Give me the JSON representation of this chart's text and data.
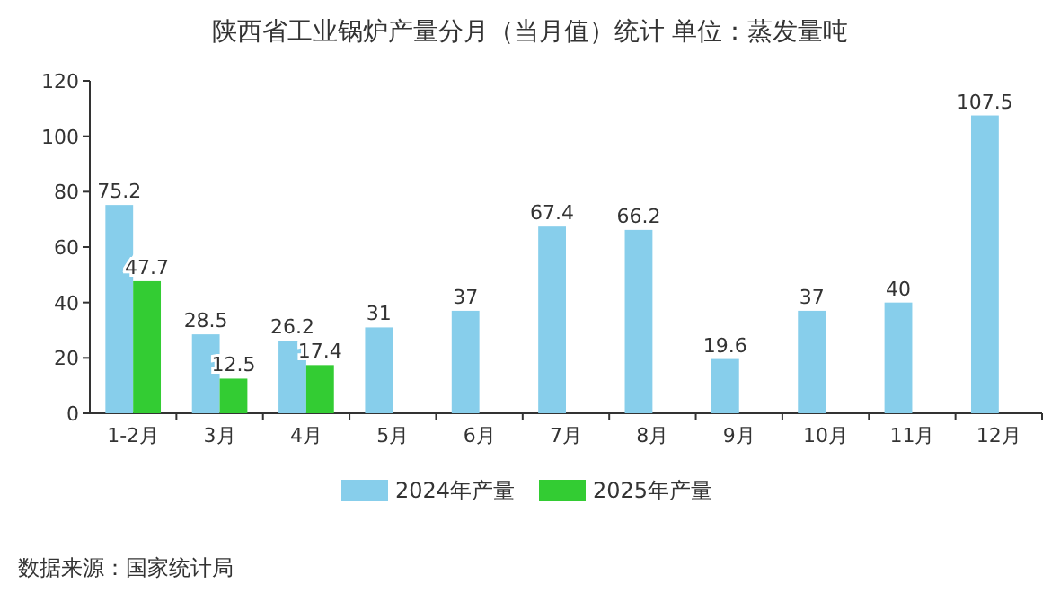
{
  "chart_data": {
    "type": "bar",
    "title": "陕西省工业锅炉产量分月（当月值）统计 单位：蒸发量吨",
    "categories": [
      "1-2月",
      "3月",
      "4月",
      "5月",
      "6月",
      "7月",
      "8月",
      "9月",
      "10月",
      "11月",
      "12月"
    ],
    "series": [
      {
        "name": "2024年产量",
        "color": "#87ceeb",
        "values": [
          75.2,
          28.5,
          26.2,
          31,
          37,
          67.4,
          66.2,
          19.6,
          37,
          40,
          107.5
        ]
      },
      {
        "name": "2025年产量",
        "color": "#33cc33",
        "values": [
          47.7,
          12.5,
          17.4,
          null,
          null,
          null,
          null,
          null,
          null,
          null,
          null
        ]
      }
    ],
    "ylim": [
      0,
      120
    ],
    "yticks": [
      0,
      20,
      40,
      60,
      80,
      100,
      120
    ],
    "grid": false,
    "legend": "bottom",
    "data_labels": true,
    "annotations": [
      "数据来源：国家统计局"
    ]
  }
}
